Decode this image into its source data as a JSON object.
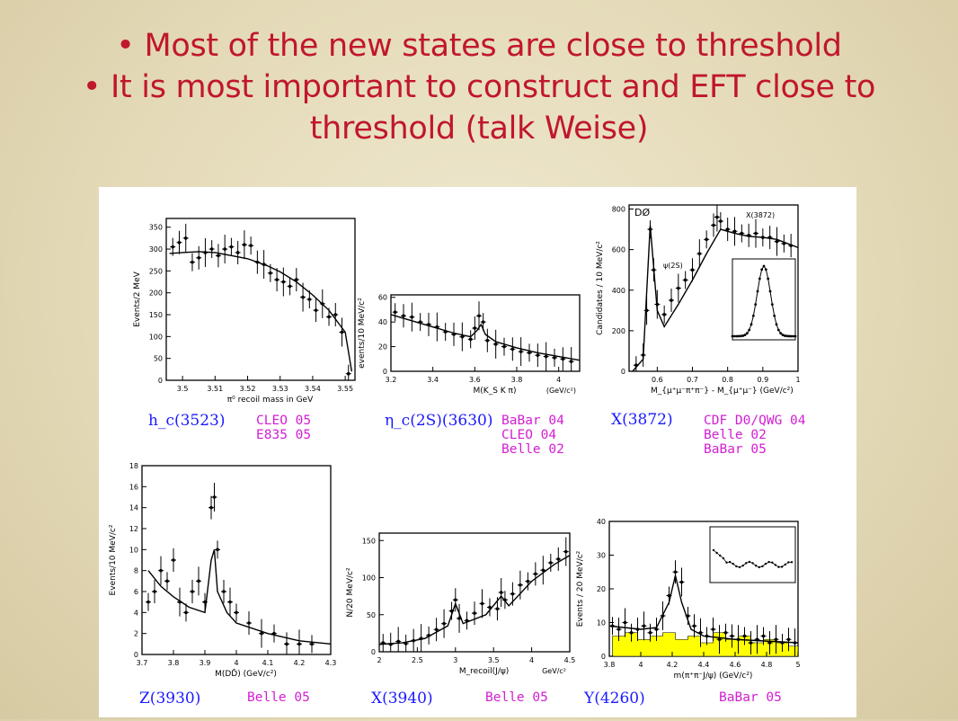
{
  "slide": {
    "bullet1": "Most of the new states are close to threshold",
    "bullet2_line1": "It is most important to construct and EFT close to",
    "bullet2_line2": "threshold (talk Weise)"
  },
  "colors": {
    "bullet_text": "#c0172c",
    "label_blue": "#1a1aff",
    "label_magenta": "#d21ed2",
    "fill_yellow": "#ffff00"
  },
  "chart_data": [
    {
      "id": "hc",
      "type": "scatter",
      "state": "h_c(3523)",
      "experiments": [
        "CLEO 05",
        "E835 05"
      ],
      "xlabel": "π⁰ recoil mass in GeV",
      "ylabel": "Events/2 MeV",
      "xticks": [
        "3.5",
        "3.51",
        "3.52",
        "3.53",
        "3.54",
        "3.55"
      ],
      "yticks": [
        "0",
        "50",
        "100",
        "150",
        "200",
        "250",
        "300",
        "350"
      ],
      "xlim": [
        3.495,
        3.553
      ],
      "ylim": [
        0,
        370
      ],
      "x": [
        3.497,
        3.499,
        3.501,
        3.503,
        3.505,
        3.507,
        3.509,
        3.511,
        3.513,
        3.515,
        3.517,
        3.519,
        3.521,
        3.523,
        3.525,
        3.527,
        3.529,
        3.531,
        3.533,
        3.535,
        3.537,
        3.539,
        3.541,
        3.543,
        3.545,
        3.547,
        3.549,
        3.551
      ],
      "y": [
        305,
        315,
        325,
        270,
        280,
        292,
        300,
        285,
        300,
        305,
        292,
        310,
        308,
        270,
        265,
        245,
        230,
        225,
        215,
        230,
        190,
        185,
        160,
        175,
        145,
        150,
        110,
        15
      ],
      "fit_x": [
        3.496,
        3.5,
        3.505,
        3.51,
        3.515,
        3.52,
        3.523,
        3.526,
        3.53,
        3.535,
        3.54,
        3.545,
        3.55,
        3.552
      ],
      "fit_y": [
        290,
        292,
        294,
        292,
        285,
        278,
        270,
        262,
        248,
        225,
        195,
        160,
        110,
        20
      ]
    },
    {
      "id": "etac2s",
      "type": "scatter",
      "state": "η_c(2S)(3630)",
      "experiments": [
        "BaBar 04",
        "CLEO 04",
        "Belle 02"
      ],
      "xlabel": "M(K_S K π)",
      "xunit": "(GeV/c²)",
      "ylabel": "events/10 MeV/c²",
      "xticks": [
        "3.2",
        "3.4",
        "3.6",
        "3.8",
        "4"
      ],
      "yticks": [
        "0",
        "20",
        "40",
        "60"
      ],
      "xlim": [
        3.2,
        4.1
      ],
      "ylim": [
        0,
        62
      ],
      "x": [
        3.22,
        3.26,
        3.3,
        3.34,
        3.38,
        3.42,
        3.46,
        3.5,
        3.54,
        3.58,
        3.6,
        3.62,
        3.64,
        3.66,
        3.7,
        3.74,
        3.78,
        3.82,
        3.86,
        3.9,
        3.94,
        3.98,
        4.02,
        4.06
      ],
      "y": [
        48,
        45,
        44,
        40,
        38,
        36,
        32,
        30,
        28,
        26,
        35,
        45,
        40,
        25,
        22,
        20,
        18,
        16,
        15,
        13,
        12,
        11,
        10,
        8
      ],
      "fit_x": [
        3.2,
        3.3,
        3.4,
        3.5,
        3.58,
        3.61,
        3.63,
        3.65,
        3.7,
        3.8,
        3.9,
        4.0,
        4.1
      ],
      "fit_y": [
        46,
        41,
        36,
        31,
        28,
        33,
        38,
        30,
        24,
        19,
        15,
        12,
        9
      ]
    },
    {
      "id": "x3872",
      "type": "scatter",
      "state": "X(3872)",
      "experiments": [
        "CDF D0/QWG 04",
        "Belle 02",
        "BaBar 05"
      ],
      "xlabel": "M_{μ⁺μ⁻π⁺π⁻} - M_{μ⁺μ⁻} (GeV/c²)",
      "ylabel": "Candidates / 10 MeV/c²",
      "annotations": [
        "DØ",
        "ψ(2S)",
        "X(3872)"
      ],
      "xticks": [
        "0.6",
        "0.7",
        "0.8",
        "0.9",
        "1"
      ],
      "yticks": [
        "0",
        "200",
        "400",
        "600",
        "800"
      ],
      "xlim": [
        0.52,
        1.0
      ],
      "ylim": [
        0,
        820
      ],
      "x": [
        0.54,
        0.56,
        0.57,
        0.58,
        0.59,
        0.6,
        0.62,
        0.64,
        0.66,
        0.68,
        0.7,
        0.72,
        0.74,
        0.76,
        0.77,
        0.78,
        0.8,
        0.82,
        0.84,
        0.86,
        0.88,
        0.9,
        0.92,
        0.94,
        0.96,
        0.98
      ],
      "y": [
        30,
        80,
        300,
        700,
        500,
        330,
        280,
        350,
        410,
        450,
        500,
        580,
        650,
        720,
        760,
        740,
        700,
        690,
        680,
        670,
        680,
        660,
        660,
        640,
        630,
        620
      ],
      "fit_x": [
        0.53,
        0.56,
        0.58,
        0.6,
        0.62,
        0.66,
        0.7,
        0.74,
        0.78,
        0.82,
        0.86,
        0.9,
        0.94,
        1.0
      ],
      "fit_y": [
        0,
        60,
        720,
        300,
        220,
        330,
        450,
        580,
        700,
        680,
        665,
        660,
        650,
        610
      ]
    },
    {
      "id": "z3930",
      "type": "scatter",
      "state": "Z(3930)",
      "experiments": [
        "Belle 05"
      ],
      "xlabel": "M(DD̄) (GeV/c²)",
      "ylabel": "Events/10 MeV/c²",
      "xticks": [
        "3.7",
        "3.8",
        "3.9",
        "4",
        "4.1",
        "4.2",
        "4.3"
      ],
      "yticks": [
        "0",
        "2",
        "4",
        "6",
        "8",
        "10",
        "12",
        "14",
        "16",
        "18"
      ],
      "xlim": [
        3.7,
        4.3
      ],
      "ylim": [
        0,
        18
      ],
      "x": [
        3.72,
        3.74,
        3.76,
        3.78,
        3.8,
        3.82,
        3.84,
        3.86,
        3.88,
        3.9,
        3.92,
        3.93,
        3.94,
        3.96,
        3.98,
        4.0,
        4.04,
        4.08,
        4.12,
        4.16,
        4.2,
        4.24
      ],
      "y": [
        5,
        6,
        8,
        7,
        9,
        5,
        4,
        6,
        7,
        5,
        14,
        15,
        10,
        6,
        5,
        4,
        3,
        2,
        2,
        1,
        1,
        1
      ],
      "fit_x": [
        3.72,
        3.76,
        3.8,
        3.85,
        3.9,
        3.92,
        3.93,
        3.94,
        3.97,
        4.0,
        4.1,
        4.2,
        4.3
      ],
      "fit_y": [
        8,
        6.5,
        5.5,
        4.5,
        4,
        9,
        10,
        6,
        4,
        3,
        2,
        1.3,
        1
      ]
    },
    {
      "id": "x3940",
      "type": "scatter",
      "state": "X(3940)",
      "experiments": [
        "Belle 05"
      ],
      "xlabel": "M_recoil(J/ψ)",
      "xunit": "GeV/c²",
      "ylabel": "N/20 MeV/c²",
      "xticks": [
        "2",
        "2.5",
        "3",
        "3.5",
        "4",
        "4.5"
      ],
      "yticks": [
        "0",
        "50",
        "100",
        "150"
      ],
      "xlim": [
        2.0,
        4.5
      ],
      "ylim": [
        0,
        160
      ],
      "x": [
        2.05,
        2.15,
        2.25,
        2.35,
        2.45,
        2.55,
        2.65,
        2.75,
        2.85,
        2.95,
        3.0,
        3.05,
        3.15,
        3.25,
        3.35,
        3.45,
        3.55,
        3.6,
        3.65,
        3.75,
        3.85,
        3.95,
        4.05,
        4.15,
        4.25,
        4.35,
        4.45
      ],
      "y": [
        12,
        10,
        14,
        11,
        15,
        18,
        22,
        30,
        38,
        55,
        70,
        45,
        42,
        52,
        65,
        60,
        58,
        80,
        70,
        78,
        90,
        95,
        105,
        110,
        120,
        125,
        135
      ],
      "fit_x": [
        2.0,
        2.3,
        2.6,
        2.9,
        3.0,
        3.1,
        3.4,
        3.6,
        3.7,
        4.0,
        4.3,
        4.5
      ],
      "fit_y": [
        10,
        12,
        18,
        35,
        65,
        38,
        50,
        75,
        62,
        95,
        118,
        130
      ]
    },
    {
      "id": "y4260",
      "type": "scatter",
      "state": "Y(4260)",
      "experiments": [
        "BaBar 05"
      ],
      "xlabel": "m(π⁺π⁻J/ψ) (GeV/c²)",
      "ylabel": "Events / 20 MeV/c²",
      "xticks": [
        "3.8",
        "4",
        "4.2",
        "4.4",
        "4.6",
        "4.8",
        "5"
      ],
      "yticks": [
        "0",
        "10",
        "20",
        "30",
        "40"
      ],
      "xlim": [
        3.8,
        5.0
      ],
      "ylim": [
        0,
        40
      ],
      "x": [
        3.82,
        3.86,
        3.9,
        3.94,
        3.98,
        4.02,
        4.06,
        4.1,
        4.14,
        4.18,
        4.22,
        4.26,
        4.3,
        4.34,
        4.38,
        4.42,
        4.46,
        4.5,
        4.54,
        4.58,
        4.62,
        4.66,
        4.7,
        4.74,
        4.78,
        4.82,
        4.86,
        4.9,
        4.94,
        4.98
      ],
      "y": [
        9,
        8,
        10,
        7,
        8,
        9,
        7,
        8,
        12,
        18,
        25,
        22,
        12,
        9,
        7,
        6,
        8,
        5,
        7,
        6,
        5,
        6,
        4,
        5,
        6,
        4,
        5,
        4,
        5,
        4
      ],
      "fit_x": [
        3.8,
        4.0,
        4.1,
        4.18,
        4.22,
        4.26,
        4.32,
        4.4,
        4.6,
        4.8,
        5.0
      ],
      "fit_y": [
        9,
        8,
        8.5,
        16,
        24,
        16,
        8,
        6,
        5,
        4.5,
        4
      ],
      "bg_x": [
        3.82,
        3.9,
        3.98,
        4.06,
        4.14,
        4.22,
        4.3,
        4.38,
        4.46,
        4.54,
        4.62,
        4.7,
        4.78,
        4.86,
        4.94
      ],
      "bg_y": [
        6,
        7,
        5,
        6,
        7,
        5,
        6,
        4,
        7,
        5,
        6,
        4,
        5,
        4,
        3
      ]
    }
  ]
}
